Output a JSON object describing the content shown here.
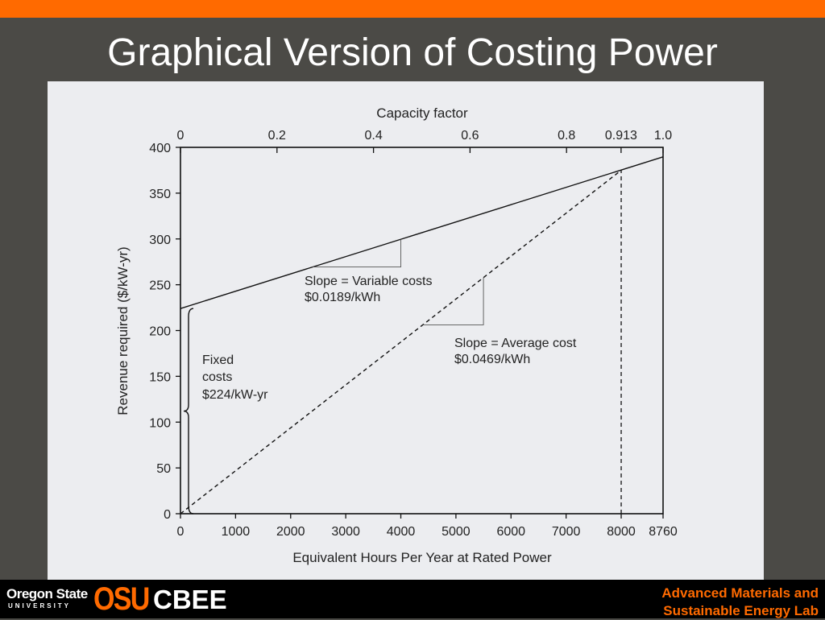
{
  "slide": {
    "title": "Graphical Version of Costing Power"
  },
  "footer": {
    "university_line1": "Oregon State",
    "university_line2": "UNIVERSITY",
    "logo_text": "OSU",
    "dept_label": "CBEE",
    "lab_label_line1": "Advanced Materials and",
    "lab_label_line2": "Sustainable Energy Lab"
  },
  "colors": {
    "top_bar": "#ff6a00",
    "background": "#4b4a46",
    "chart_panel": "#ecedf0",
    "footer": "#000000",
    "accent": "#ff6a00"
  },
  "chart_data": {
    "type": "line",
    "title": "",
    "xlabel": "Equivalent Hours Per Year at Rated Power",
    "ylabel": "Revenue required ($/kW-yr)",
    "x2label": "Capacity factor",
    "xlim": [
      0,
      8760
    ],
    "ylim": [
      0,
      400
    ],
    "x_ticks": [
      0,
      1000,
      2000,
      3000,
      4000,
      5000,
      6000,
      7000,
      8000,
      8760
    ],
    "y_ticks": [
      0,
      50,
      100,
      150,
      200,
      250,
      300,
      350,
      400
    ],
    "x2_ticks": [
      {
        "value": 0,
        "label": "0"
      },
      {
        "value": 0.2,
        "label": "0.2"
      },
      {
        "value": 0.4,
        "label": "0.4"
      },
      {
        "value": 0.6,
        "label": "0.6"
      },
      {
        "value": 0.8,
        "label": "0.8"
      },
      {
        "value": 0.913,
        "label": "0.913"
      },
      {
        "value": 1.0,
        "label": "1.0"
      }
    ],
    "series": [
      {
        "name": "",
        "style": "solid",
        "x": [
          0,
          8760
        ],
        "y": [
          224,
          389.6
        ]
      },
      {
        "name": "",
        "style": "dashed",
        "x": [
          0,
          8000
        ],
        "y": [
          0,
          375
        ]
      }
    ],
    "guide_line": {
      "x": 8000,
      "y": [
        0,
        375
      ]
    },
    "grid": false,
    "annotations": {
      "variable": {
        "line1": "Slope = Variable costs",
        "line2": "$0.0189/kWh",
        "triangle_x": [
          2400,
          4000
        ]
      },
      "average": {
        "line1": "Slope = Average cost",
        "line2": "$0.0469/kWh",
        "triangle_x": [
          4400,
          5500
        ]
      },
      "fixed": {
        "line1": "Fixed",
        "line2": "costs",
        "line3": "$224/kW-yr",
        "brace_y": [
          0,
          224
        ]
      }
    }
  }
}
